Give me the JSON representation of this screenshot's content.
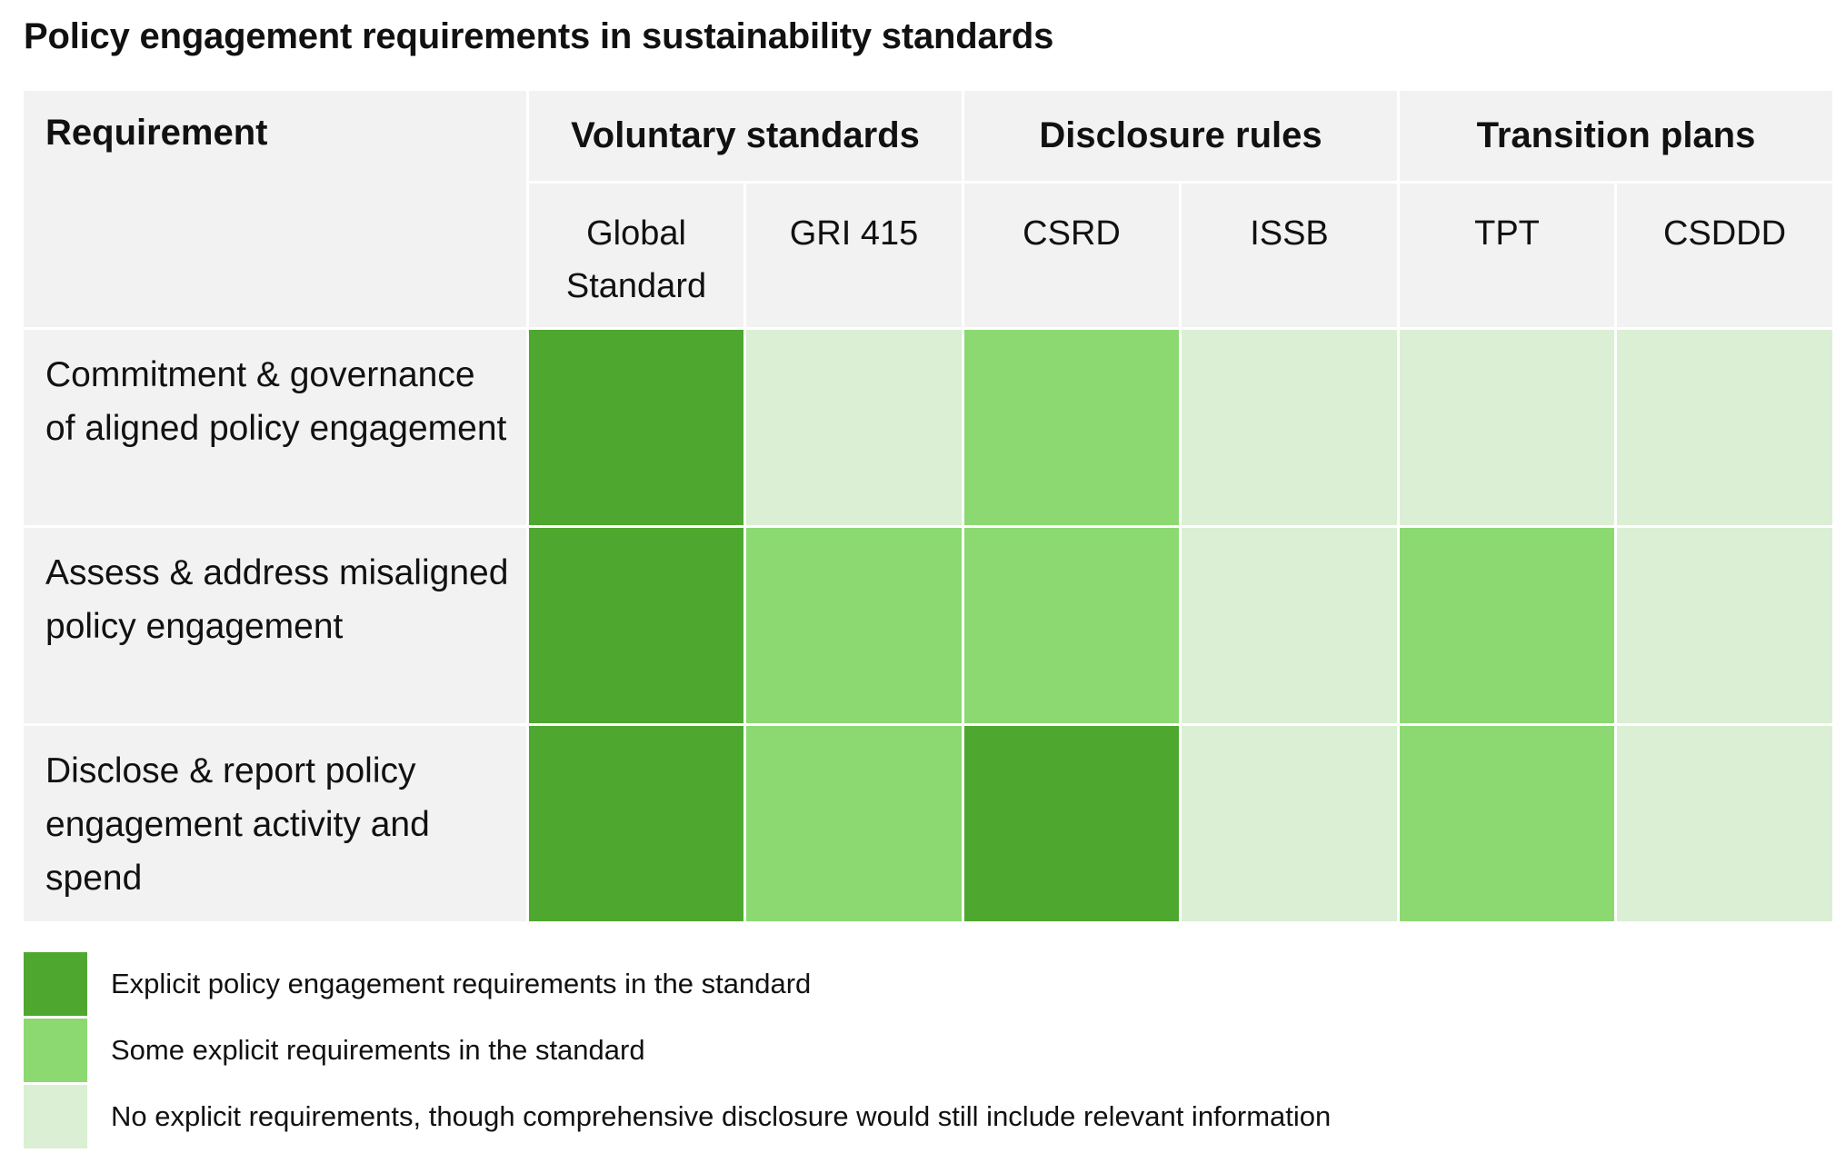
{
  "chart_data": {
    "type": "table",
    "title": "Policy engagement requirements in sustainability standards",
    "row_header": "Requirement",
    "column_groups": [
      {
        "label": "Voluntary standards",
        "columns": [
          "Global Standard",
          "GRI 415"
        ]
      },
      {
        "label": "Disclosure rules",
        "columns": [
          "CSRD",
          "ISSB"
        ]
      },
      {
        "label": "Transition plans",
        "columns": [
          "TPT",
          "CSDDD"
        ]
      }
    ],
    "rows": [
      {
        "label": "Commitment & governance of aligned policy engagement",
        "levels": [
          "explicit",
          "none",
          "some",
          "none",
          "none",
          "none"
        ]
      },
      {
        "label": "Assess & address misaligned policy engagement",
        "levels": [
          "explicit",
          "some",
          "some",
          "none",
          "some",
          "none"
        ]
      },
      {
        "label": "Disclose & report policy engagement activity and spend",
        "levels": [
          "explicit",
          "some",
          "explicit",
          "none",
          "some",
          "none"
        ]
      }
    ],
    "legend": [
      {
        "key": "explicit",
        "label": "Explicit policy engagement requirements in the standard",
        "color": "#4ea72e"
      },
      {
        "key": "some",
        "label": "Some explicit requirements in the standard",
        "color": "#8cd972"
      },
      {
        "key": "none",
        "label": "No explicit requirements, though comprehensive disclosure would still include relevant information",
        "color": "#daefd3"
      }
    ]
  }
}
